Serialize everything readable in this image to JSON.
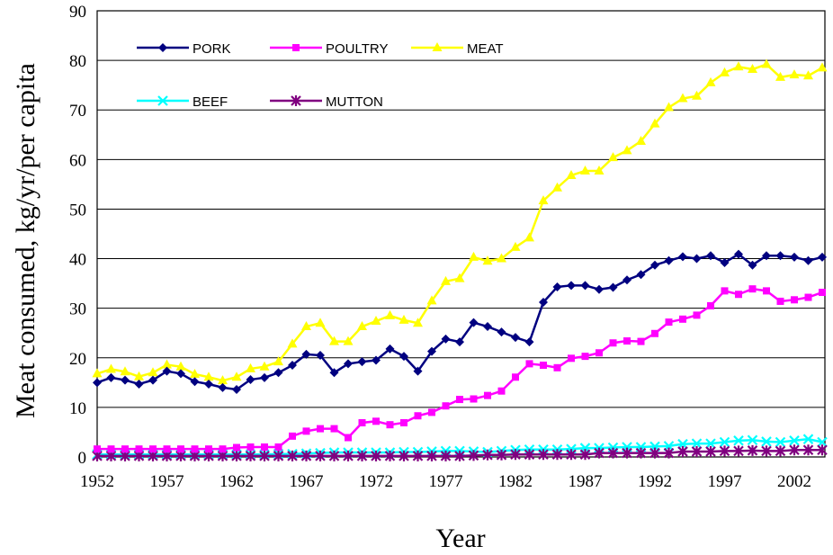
{
  "chart_data": {
    "type": "line",
    "title": "",
    "xlabel": "Year",
    "ylabel": "Meat consumed, kg/yr/per capita",
    "xlim": [
      1952,
      2004
    ],
    "ylim": [
      0,
      90
    ],
    "yticks": [
      0,
      10,
      20,
      30,
      40,
      50,
      60,
      70,
      80,
      90
    ],
    "xticks": [
      1952,
      1957,
      1962,
      1967,
      1972,
      1977,
      1982,
      1987,
      1992,
      1997,
      2002
    ],
    "grid": "horizontal",
    "legend_position": "top-left",
    "x": [
      1952,
      1953,
      1954,
      1955,
      1956,
      1957,
      1958,
      1959,
      1960,
      1961,
      1962,
      1963,
      1964,
      1965,
      1966,
      1967,
      1968,
      1969,
      1970,
      1971,
      1972,
      1973,
      1974,
      1975,
      1976,
      1977,
      1978,
      1979,
      1980,
      1981,
      1982,
      1983,
      1984,
      1985,
      1986,
      1987,
      1988,
      1989,
      1990,
      1991,
      1992,
      1993,
      1994,
      1995,
      1996,
      1997,
      1998,
      1999,
      2000,
      2001,
      2002,
      2003,
      2004
    ],
    "series": [
      {
        "name": "PORK",
        "color": "#000080",
        "marker": "diamond",
        "values": [
          15,
          16,
          15.5,
          14.7,
          15.5,
          17.3,
          16.8,
          15.2,
          14.7,
          14,
          13.6,
          15.6,
          16,
          17,
          18.5,
          20.7,
          20.5,
          17,
          18.8,
          19.2,
          19.5,
          21.8,
          20.3,
          17.3,
          21.3,
          23.8,
          23.2,
          27.1,
          26.3,
          25.2,
          24.1,
          23.2,
          31.2,
          34.3,
          34.6,
          34.6,
          33.8,
          34.2,
          35.7,
          36.8,
          38.7,
          39.6,
          40.4,
          40,
          40.6,
          39.2,
          40.9,
          38.7,
          40.6,
          40.6,
          40.3,
          39.6,
          40.3
        ]
      },
      {
        "name": "POULTRY",
        "color": "#FF00FF",
        "marker": "square",
        "values": [
          1.6,
          1.6,
          1.6,
          1.6,
          1.6,
          1.6,
          1.6,
          1.6,
          1.6,
          1.6,
          1.9,
          2,
          2,
          2,
          4.2,
          5.2,
          5.7,
          5.7,
          3.9,
          6.9,
          7.2,
          6.5,
          6.9,
          8.3,
          9,
          10.3,
          11.6,
          11.7,
          12.4,
          13.3,
          16.1,
          18.8,
          18.5,
          18,
          19.9,
          20.3,
          21,
          23,
          23.4,
          23.3,
          24.9,
          27.2,
          27.8,
          28.6,
          30.5,
          33.5,
          32.8,
          33.9,
          33.5,
          31.4,
          31.7,
          32.2,
          33.2
        ]
      },
      {
        "name": "MEAT",
        "color": "#FFFF00",
        "marker": "triangle",
        "values": [
          16.8,
          17.7,
          17.2,
          16.2,
          17,
          18.6,
          18.2,
          16.7,
          16.1,
          15.4,
          16.1,
          17.8,
          18.2,
          19.2,
          22.8,
          26.3,
          27,
          23.3,
          23.3,
          26.3,
          27.4,
          28.5,
          27.6,
          27,
          31.5,
          35.4,
          36,
          40.3,
          39.5,
          40,
          42.3,
          44.2,
          51.7,
          54.3,
          56.8,
          57.7,
          57.7,
          60.4,
          61.8,
          63.7,
          67.2,
          70.5,
          72.3,
          72.8,
          75.5,
          77.5,
          78.7,
          78.2,
          79.2,
          76.6,
          77.1,
          76.9,
          78.5
        ]
      },
      {
        "name": "BEEF",
        "color": "#00FFFF",
        "marker": "x",
        "values": [
          0.5,
          0.5,
          0.5,
          0.5,
          0.5,
          0.5,
          0.5,
          0.5,
          0.5,
          0.5,
          0.5,
          0.5,
          0.5,
          0.6,
          0.6,
          0.7,
          0.8,
          0.9,
          0.9,
          0.9,
          0.9,
          0.9,
          1,
          1,
          1.1,
          1.2,
          1.2,
          1.1,
          1,
          1.2,
          1.4,
          1.5,
          1.5,
          1.5,
          1.6,
          1.8,
          1.8,
          1.9,
          2,
          2,
          2.1,
          2.2,
          2.6,
          2.7,
          2.7,
          3,
          3.3,
          3.4,
          3.1,
          3,
          3.3,
          3.6,
          3
        ]
      },
      {
        "name": "MUTTON",
        "color": "#800080",
        "marker": "asterisk",
        "values": [
          0.2,
          0.2,
          0.2,
          0.2,
          0.2,
          0.2,
          0.2,
          0.2,
          0.2,
          0.2,
          0.2,
          0.2,
          0.2,
          0.2,
          0.2,
          0.2,
          0.2,
          0.2,
          0.2,
          0.2,
          0.2,
          0.2,
          0.2,
          0.2,
          0.2,
          0.2,
          0.2,
          0.3,
          0.4,
          0.4,
          0.5,
          0.5,
          0.5,
          0.5,
          0.5,
          0.5,
          0.8,
          0.8,
          0.8,
          0.8,
          0.8,
          0.8,
          1.1,
          1.1,
          1.1,
          1.2,
          1.2,
          1.3,
          1.2,
          1.2,
          1.4,
          1.4,
          1.4
        ]
      }
    ]
  }
}
